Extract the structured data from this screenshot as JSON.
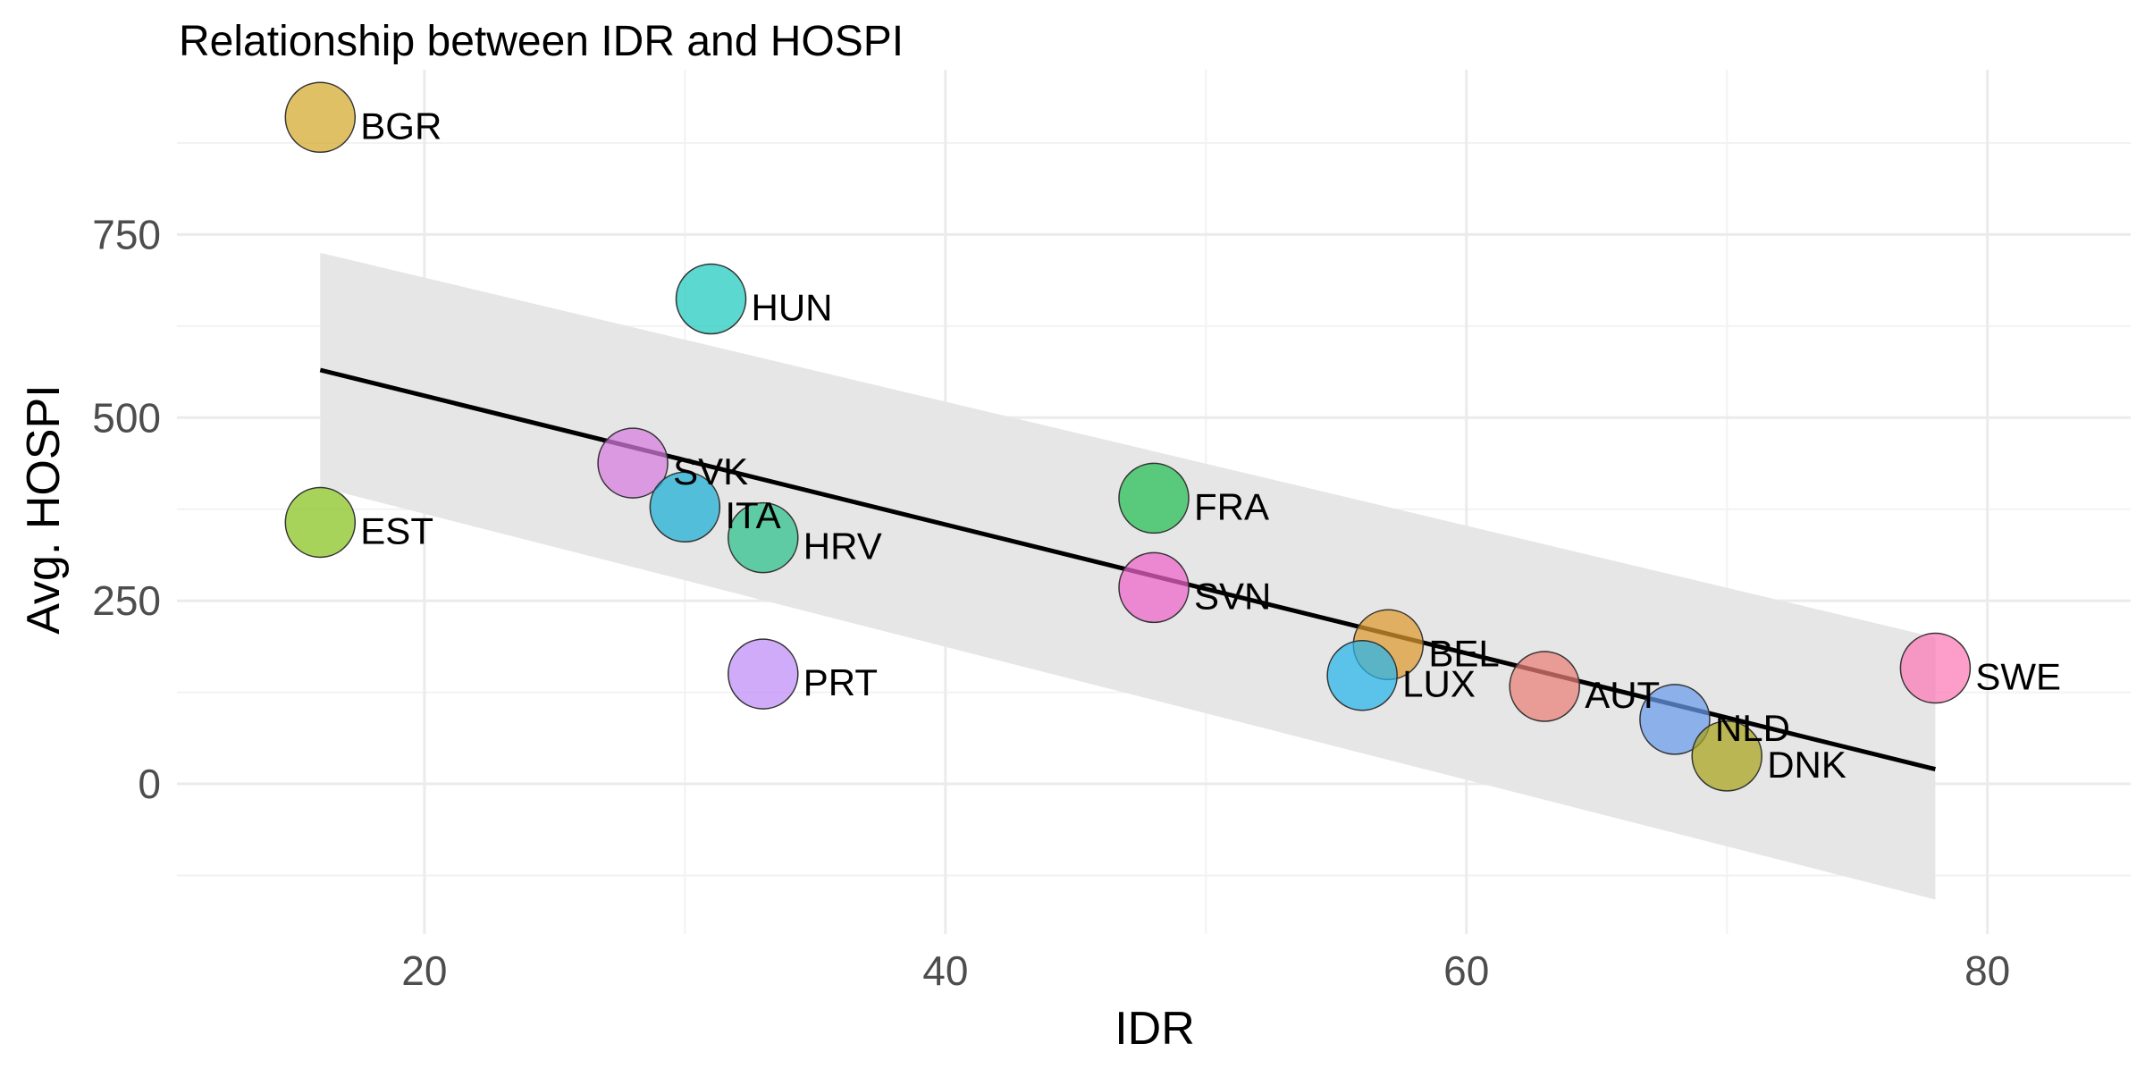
{
  "chart_data": {
    "type": "scatter",
    "title": "Relationship between IDR and HOSPI",
    "xlabel": "IDR",
    "ylabel": "Avg. HOSPI",
    "xlim": [
      10.5,
      85.5
    ],
    "ylim": [
      -205,
      975
    ],
    "x_ticks": [
      20,
      40,
      60,
      80
    ],
    "y_ticks": [
      0,
      250,
      500,
      750
    ],
    "grid": true,
    "legend": "none",
    "points": [
      {
        "label": "BGR",
        "x": 16,
        "y": 910,
        "color": "#D4A82A"
      },
      {
        "label": "HUN",
        "x": 31,
        "y": 662,
        "color": "#1CC9BC"
      },
      {
        "label": "SVK",
        "x": 28,
        "y": 438,
        "color": "#D77CE0"
      },
      {
        "label": "EST",
        "x": 16,
        "y": 357,
        "color": "#86C21A"
      },
      {
        "label": "ITA",
        "x": 30,
        "y": 378,
        "color": "#1AAFD6"
      },
      {
        "label": "HRV",
        "x": 33,
        "y": 336,
        "color": "#2BC18A"
      },
      {
        "label": "PRT",
        "x": 33,
        "y": 150,
        "color": "#BD8AF7"
      },
      {
        "label": "FRA",
        "x": 48,
        "y": 390,
        "color": "#22BE52"
      },
      {
        "label": "SVN",
        "x": 48,
        "y": 268,
        "color": "#EE63C9"
      },
      {
        "label": "BEL",
        "x": 57,
        "y": 190,
        "color": "#DE9A2F"
      },
      {
        "label": "LUX",
        "x": 56,
        "y": 148,
        "color": "#26B6EB"
      },
      {
        "label": "AUT",
        "x": 63,
        "y": 133,
        "color": "#EA7F77"
      },
      {
        "label": "NLD",
        "x": 68,
        "y": 88,
        "color": "#6A9BEC"
      },
      {
        "label": "DNK",
        "x": 70,
        "y": 38,
        "color": "#A8A31B"
      },
      {
        "label": "SWE",
        "x": 78,
        "y": 158,
        "color": "#FC77B6"
      }
    ],
    "fit": {
      "method": "lm",
      "x": [
        16,
        78
      ],
      "y": [
        565,
        20
      ],
      "ci_upper": [
        725,
        200
      ],
      "ci_lower": [
        405,
        -158
      ],
      "color": "#000000",
      "ci_color": "#e6e6e6"
    }
  }
}
